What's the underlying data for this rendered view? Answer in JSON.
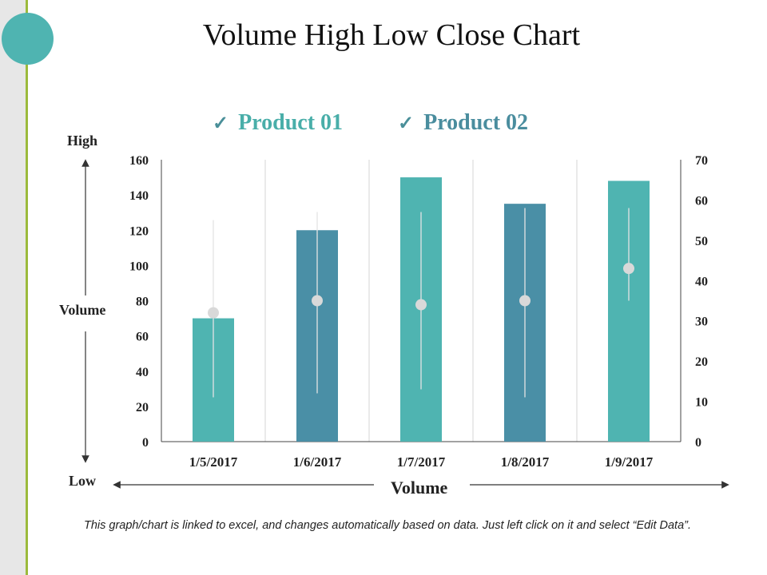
{
  "title": "Volume High Low Close Chart",
  "legend": [
    {
      "label": "Product 01",
      "color": "#4fb4b1"
    },
    {
      "label": "Product 02",
      "color": "#4a8fa6"
    }
  ],
  "side_labels": {
    "high": "High",
    "low": "Low",
    "volume_v": "Volume",
    "volume_h": "Volume"
  },
  "footer": "This graph/chart is linked to excel, and changes automatically based on data. Just left click on it and select “Edit Data”.",
  "chart_data": {
    "type": "bar",
    "categories": [
      "1/5/2017",
      "1/6/2017",
      "1/7/2017",
      "1/8/2017",
      "1/9/2017"
    ],
    "series": [
      {
        "name": "Volume",
        "axis": "left",
        "values": [
          70,
          120,
          150,
          135,
          148
        ],
        "colors": [
          "#4fb4b1",
          "#4a8fa6",
          "#4fb4b1",
          "#4a8fa6",
          "#4fb4b1"
        ]
      },
      {
        "name": "High",
        "axis": "right",
        "values": [
          55,
          57,
          57,
          58,
          58
        ]
      },
      {
        "name": "Low",
        "axis": "right",
        "values": [
          11,
          12,
          13,
          11,
          35
        ]
      },
      {
        "name": "Close",
        "axis": "right",
        "values": [
          32,
          35,
          34,
          35,
          43
        ]
      }
    ],
    "ylim_left": [
      0,
      160
    ],
    "ylim_right": [
      0,
      70
    ],
    "yticks_left": [
      0,
      20,
      40,
      60,
      80,
      100,
      120,
      140,
      160
    ],
    "yticks_right": [
      0,
      10,
      20,
      30,
      40,
      50,
      60,
      70
    ],
    "grid": "vertical"
  }
}
